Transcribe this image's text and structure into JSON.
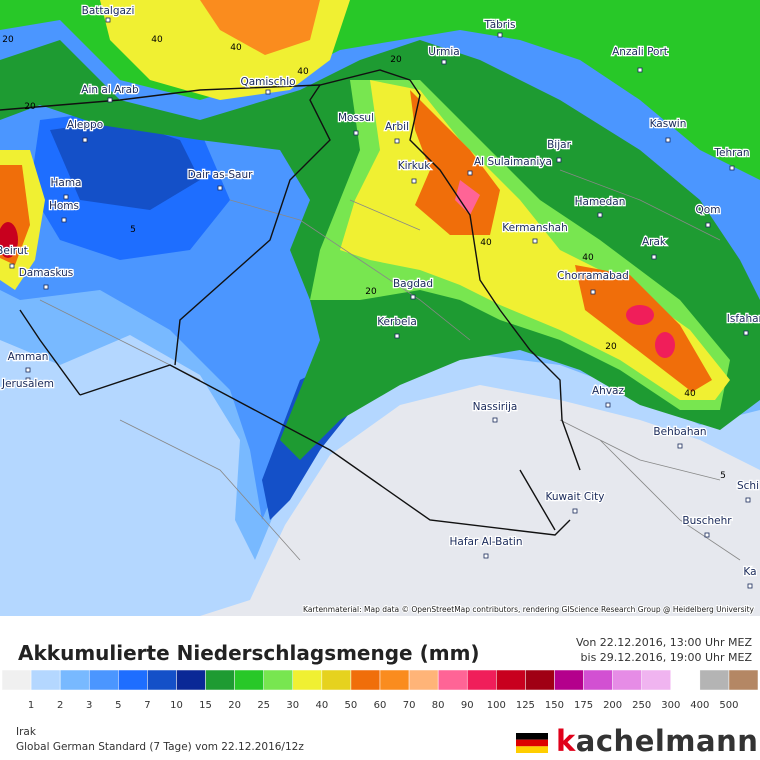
{
  "map": {
    "cities": [
      "Battalgazi",
      "Täbris",
      "Anzali Port",
      "Urmia",
      "Ain al Arab",
      "Qamischlo",
      "Aleppo",
      "Mossul",
      "Arbil",
      "Kaswin",
      "Bijar",
      "Tehran",
      "Hama",
      "Dair as-Saur",
      "Kirkuk",
      "Al Sulaimaniya",
      "Homs",
      "Hamedan",
      "Qom",
      "Beirut",
      "Kermanshah",
      "Arak",
      "Damaskus",
      "Chorramabad",
      "Bagdad",
      "Isfahan",
      "Kerbela",
      "Amman",
      "Jerusalem",
      "Ahvaz",
      "Nassirija",
      "Behbahan",
      "Schi",
      "Kuwait City",
      "Buschehr",
      "Hafar Al-Batin",
      "Ka"
    ],
    "contour_labels": [
      20,
      40,
      40,
      40,
      20,
      20,
      40,
      40,
      20,
      40,
      5,
      20,
      5
    ],
    "attribution": "Kartenmaterial: Map data © OpenStreetMap contributors, rendering GIScience Research Group @ Heidelberg University"
  },
  "footer": {
    "title": "Akkumulierte Niederschlagsmenge (mm)",
    "from": "Von 22.12.2016, 13:00 Uhr MEZ",
    "to": "bis 29.12.2016, 19:00 Uhr MEZ",
    "legend": {
      "labels": [
        1,
        2,
        3,
        5,
        7,
        10,
        15,
        20,
        25,
        30,
        40,
        50,
        60,
        70,
        80,
        90,
        100,
        125,
        150,
        175,
        200,
        250,
        300,
        400,
        500
      ],
      "colors": [
        "#f0f0f0",
        "#b4d7ff",
        "#78b9ff",
        "#4b96ff",
        "#1e6eff",
        "#1450c8",
        "#0a2896",
        "#1e9b32",
        "#28c828",
        "#78e650",
        "#f0f032",
        "#e6d21e",
        "#f06e0a",
        "#fa8c1e",
        "#ffb478",
        "#ff6496",
        "#f01e5a",
        "#c8001e",
        "#a00014",
        "#b4008c",
        "#d250d2",
        "#e68ce6",
        "#f0b4f0",
        "#ffffff",
        "#b4b4b4",
        "#b48764"
      ]
    },
    "region": "Irak",
    "model": "Global German Standard (7 Tage) vom 22.12.2016/12z",
    "logo": "kachelmann."
  }
}
